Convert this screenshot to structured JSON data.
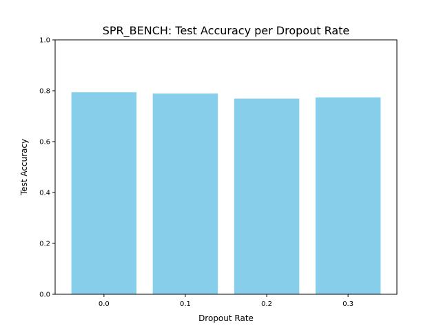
{
  "chart_data": {
    "type": "bar",
    "title": "SPR_BENCH: Test Accuracy per Dropout Rate",
    "xlabel": "Dropout Rate",
    "ylabel": "Test Accuracy",
    "categories": [
      "0.0",
      "0.1",
      "0.2",
      "0.3"
    ],
    "values": [
      0.794,
      0.789,
      0.769,
      0.774
    ],
    "ylim": [
      0,
      1.0
    ],
    "yticks": [
      "0.0",
      "0.2",
      "0.4",
      "0.6",
      "0.8",
      "1.0"
    ],
    "grid": false,
    "legend": "none",
    "bar_color": "#87CEEB"
  }
}
